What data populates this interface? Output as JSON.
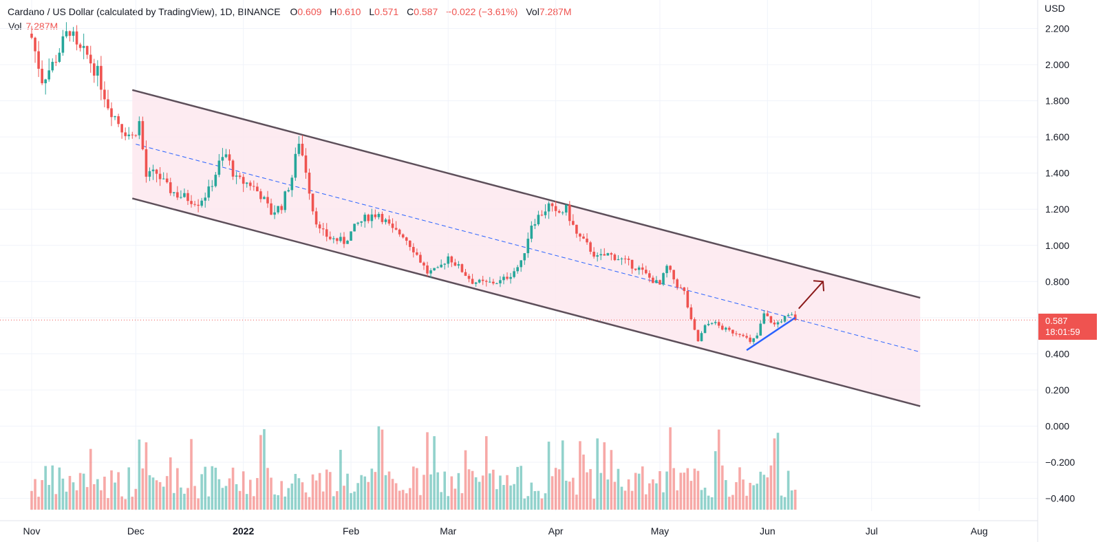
{
  "header": {
    "title": "Cardano / US Dollar (calculated by TradingView), 1D, BINANCE",
    "o_label": "O",
    "o_value": "0.609",
    "h_label": "H",
    "h_value": "0.610",
    "l_label": "L",
    "l_value": "0.571",
    "c_label": "C",
    "c_value": "0.587",
    "change": "−0.022 (−3.61%)",
    "vol_label": "Vol",
    "vol_value": "7.287M"
  },
  "volume_legend": {
    "label": "Vol",
    "value": "7.287M"
  },
  "price_axis": {
    "unit": "USD",
    "current_price": "0.587",
    "countdown": "18:01:59"
  },
  "colors": {
    "up": "#26a69a",
    "down": "#ef5350",
    "channel_fill": "#fde8ef",
    "channel_line": "#5d4f5a",
    "midline": "#2962ff",
    "trendline": "#2962ff",
    "arrow": "#8b1a1a"
  },
  "chart_data": {
    "type": "candlestick",
    "instrument": "Cardano / US Dollar",
    "interval": "1D",
    "exchange": "BINANCE",
    "y_ticks": [
      2.2,
      2.0,
      1.8,
      1.6,
      1.4,
      1.2,
      1.0,
      0.8,
      0.6,
      0.4,
      0.2,
      0.0,
      -0.2,
      -0.4
    ],
    "y_tick_labels": [
      "2.200",
      "2.000",
      "1.800",
      "1.600",
      "1.400",
      "1.200",
      "1.000",
      "0.800",
      "0.400",
      "0.200",
      "0.000",
      "−0.200",
      "−0.400"
    ],
    "x_ticks": [
      {
        "label": "Nov",
        "date": "2021-11-01"
      },
      {
        "label": "Dec",
        "date": "2021-12-01"
      },
      {
        "label": "2022",
        "date": "2022-01-01",
        "bold": true
      },
      {
        "label": "Feb",
        "date": "2022-02-01"
      },
      {
        "label": "Mar",
        "date": "2022-03-01"
      },
      {
        "label": "Apr",
        "date": "2022-04-01"
      },
      {
        "label": "May",
        "date": "2022-05-01"
      },
      {
        "label": "Jun",
        "date": "2022-06-01"
      },
      {
        "label": "Jul",
        "date": "2022-07-01"
      },
      {
        "label": "Aug",
        "date": "2022-08-01"
      }
    ],
    "last_price": 0.587,
    "channel": {
      "upper": [
        {
          "date": "2021-11-30",
          "price": 1.86
        },
        {
          "date": "2022-07-15",
          "price": 0.71
        }
      ],
      "lower": [
        {
          "date": "2021-11-30",
          "price": 1.26
        },
        {
          "date": "2022-07-15",
          "price": 0.11
        }
      ],
      "midline": [
        {
          "date": "2021-12-01",
          "price": 1.56
        },
        {
          "date": "2022-07-15",
          "price": 0.41
        }
      ]
    },
    "trendline": [
      {
        "date": "2022-05-26",
        "price": 0.42
      },
      {
        "date": "2022-06-09",
        "price": 0.6
      }
    ],
    "arrow": {
      "from": {
        "date": "2022-06-10",
        "price": 0.65
      },
      "to": {
        "date": "2022-06-17",
        "price": 0.8
      }
    },
    "close_path": [
      [
        "2021-11-01",
        2.15
      ],
      [
        "2021-11-04",
        1.92
      ],
      [
        "2021-11-07",
        2.0
      ],
      [
        "2021-11-10",
        2.12
      ],
      [
        "2021-11-12",
        2.2
      ],
      [
        "2021-11-14",
        2.08
      ],
      [
        "2021-11-17",
        2.05
      ],
      [
        "2021-11-20",
        1.95
      ],
      [
        "2021-11-23",
        1.78
      ],
      [
        "2021-11-27",
        1.65
      ],
      [
        "2021-11-30",
        1.6
      ],
      [
        "2021-12-02",
        1.68
      ],
      [
        "2021-12-04",
        1.38
      ],
      [
        "2021-12-07",
        1.4
      ],
      [
        "2021-12-10",
        1.32
      ],
      [
        "2021-12-13",
        1.28
      ],
      [
        "2021-12-16",
        1.26
      ],
      [
        "2021-12-19",
        1.24
      ],
      [
        "2021-12-22",
        1.3
      ],
      [
        "2021-12-25",
        1.45
      ],
      [
        "2021-12-27",
        1.5
      ],
      [
        "2021-12-30",
        1.36
      ],
      [
        "2022-01-03",
        1.34
      ],
      [
        "2022-01-06",
        1.28
      ],
      [
        "2022-01-09",
        1.18
      ],
      [
        "2022-01-12",
        1.22
      ],
      [
        "2022-01-15",
        1.38
      ],
      [
        "2022-01-17",
        1.58
      ],
      [
        "2022-01-19",
        1.42
      ],
      [
        "2022-01-21",
        1.2
      ],
      [
        "2022-01-23",
        1.08
      ],
      [
        "2022-01-26",
        1.04
      ],
      [
        "2022-01-30",
        1.02
      ],
      [
        "2022-02-03",
        1.12
      ],
      [
        "2022-02-06",
        1.16
      ],
      [
        "2022-02-09",
        1.18
      ],
      [
        "2022-02-13",
        1.08
      ],
      [
        "2022-02-16",
        1.06
      ],
      [
        "2022-02-19",
        0.98
      ],
      [
        "2022-02-23",
        0.85
      ],
      [
        "2022-02-26",
        0.86
      ],
      [
        "2022-03-01",
        0.94
      ],
      [
        "2022-03-04",
        0.88
      ],
      [
        "2022-03-08",
        0.8
      ],
      [
        "2022-03-12",
        0.79
      ],
      [
        "2022-03-16",
        0.8
      ],
      [
        "2022-03-19",
        0.84
      ],
      [
        "2022-03-22",
        0.9
      ],
      [
        "2022-03-25",
        1.12
      ],
      [
        "2022-03-27",
        1.16
      ],
      [
        "2022-03-30",
        1.22
      ],
      [
        "2022-04-01",
        1.17
      ],
      [
        "2022-04-04",
        1.2
      ],
      [
        "2022-04-07",
        1.06
      ],
      [
        "2022-04-10",
        1.0
      ],
      [
        "2022-04-13",
        0.93
      ],
      [
        "2022-04-16",
        0.95
      ],
      [
        "2022-04-19",
        0.93
      ],
      [
        "2022-04-22",
        0.9
      ],
      [
        "2022-04-25",
        0.87
      ],
      [
        "2022-04-28",
        0.82
      ],
      [
        "2022-05-01",
        0.78
      ],
      [
        "2022-05-03",
        0.88
      ],
      [
        "2022-05-06",
        0.78
      ],
      [
        "2022-05-08",
        0.74
      ],
      [
        "2022-05-10",
        0.58
      ],
      [
        "2022-05-12",
        0.47
      ],
      [
        "2022-05-14",
        0.55
      ],
      [
        "2022-05-16",
        0.58
      ],
      [
        "2022-05-19",
        0.54
      ],
      [
        "2022-05-22",
        0.52
      ],
      [
        "2022-05-25",
        0.51
      ],
      [
        "2022-05-27",
        0.46
      ],
      [
        "2022-05-29",
        0.5
      ],
      [
        "2022-05-31",
        0.62
      ],
      [
        "2022-06-03",
        0.56
      ],
      [
        "2022-06-06",
        0.6
      ],
      [
        "2022-06-08",
        0.61
      ],
      [
        "2022-06-09",
        0.587
      ]
    ]
  }
}
